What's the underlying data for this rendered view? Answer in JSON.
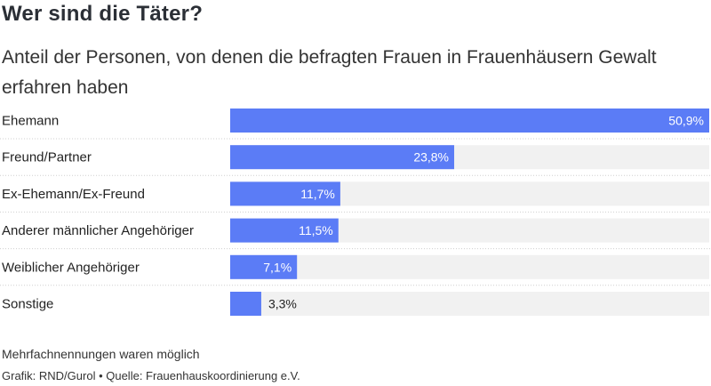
{
  "title": "Wer sind die Täter?",
  "subtitle": "Anteil der Personen, von denen die befragten Frauen in Frauenhäusern Gewalt erfahren haben",
  "note": "Mehrfachnennungen waren möglich",
  "credit": "Grafik: RND/Gurol • Quelle: Frauenhauskoordinierung e.V.",
  "colors": {
    "bar": "#5b7cf6",
    "track": "#f1f1f1",
    "separator": "#cfcfcf"
  },
  "chart_data": {
    "type": "bar",
    "orientation": "horizontal",
    "categories": [
      "Ehemann",
      "Freund/Partner",
      "Ex-Ehemann/Ex-Freund",
      "Anderer männlicher Angehöriger",
      "Weiblicher Angehöriger",
      "Sonstige"
    ],
    "values": [
      50.9,
      23.8,
      11.7,
      11.5,
      7.1,
      3.3
    ],
    "value_labels": [
      "50,9%",
      "23,8%",
      "11,7%",
      "11,5%",
      "7,1%",
      "3,3%"
    ],
    "unit": "%",
    "xlim": [
      0,
      50.9
    ],
    "grid": false
  }
}
